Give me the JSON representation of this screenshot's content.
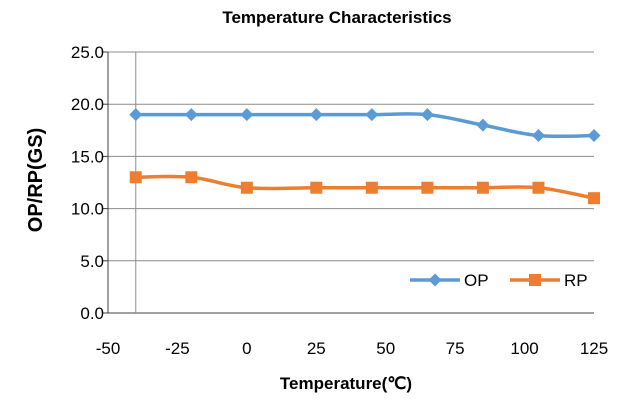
{
  "chart_data": {
    "type": "line",
    "title": "Temperature Characteristics",
    "xlabel": "Temperature(℃)",
    "ylabel": "OP/RP(GS)",
    "xlim": [
      -50,
      125
    ],
    "ylim": [
      0,
      25
    ],
    "x_ticks": [
      "-50",
      "-25",
      "0",
      "25",
      "50",
      "75",
      "100",
      "125"
    ],
    "y_ticks": [
      "0.0",
      "5.0",
      "10.0",
      "15.0",
      "20.0",
      "25.0"
    ],
    "x": [
      -40,
      -20,
      0,
      25,
      45,
      65,
      85,
      105,
      125
    ],
    "series": [
      {
        "name": "OP",
        "color": "#5b9bd5",
        "marker": "diamond",
        "values": [
          19,
          19,
          19,
          19,
          19,
          19,
          18,
          17,
          17
        ]
      },
      {
        "name": "RP",
        "color": "#ed7d31",
        "marker": "square",
        "values": [
          13,
          13,
          12,
          12,
          12,
          12,
          12,
          12,
          11
        ]
      }
    ],
    "grid": "horizontal",
    "legend_position": "bottom-right"
  }
}
